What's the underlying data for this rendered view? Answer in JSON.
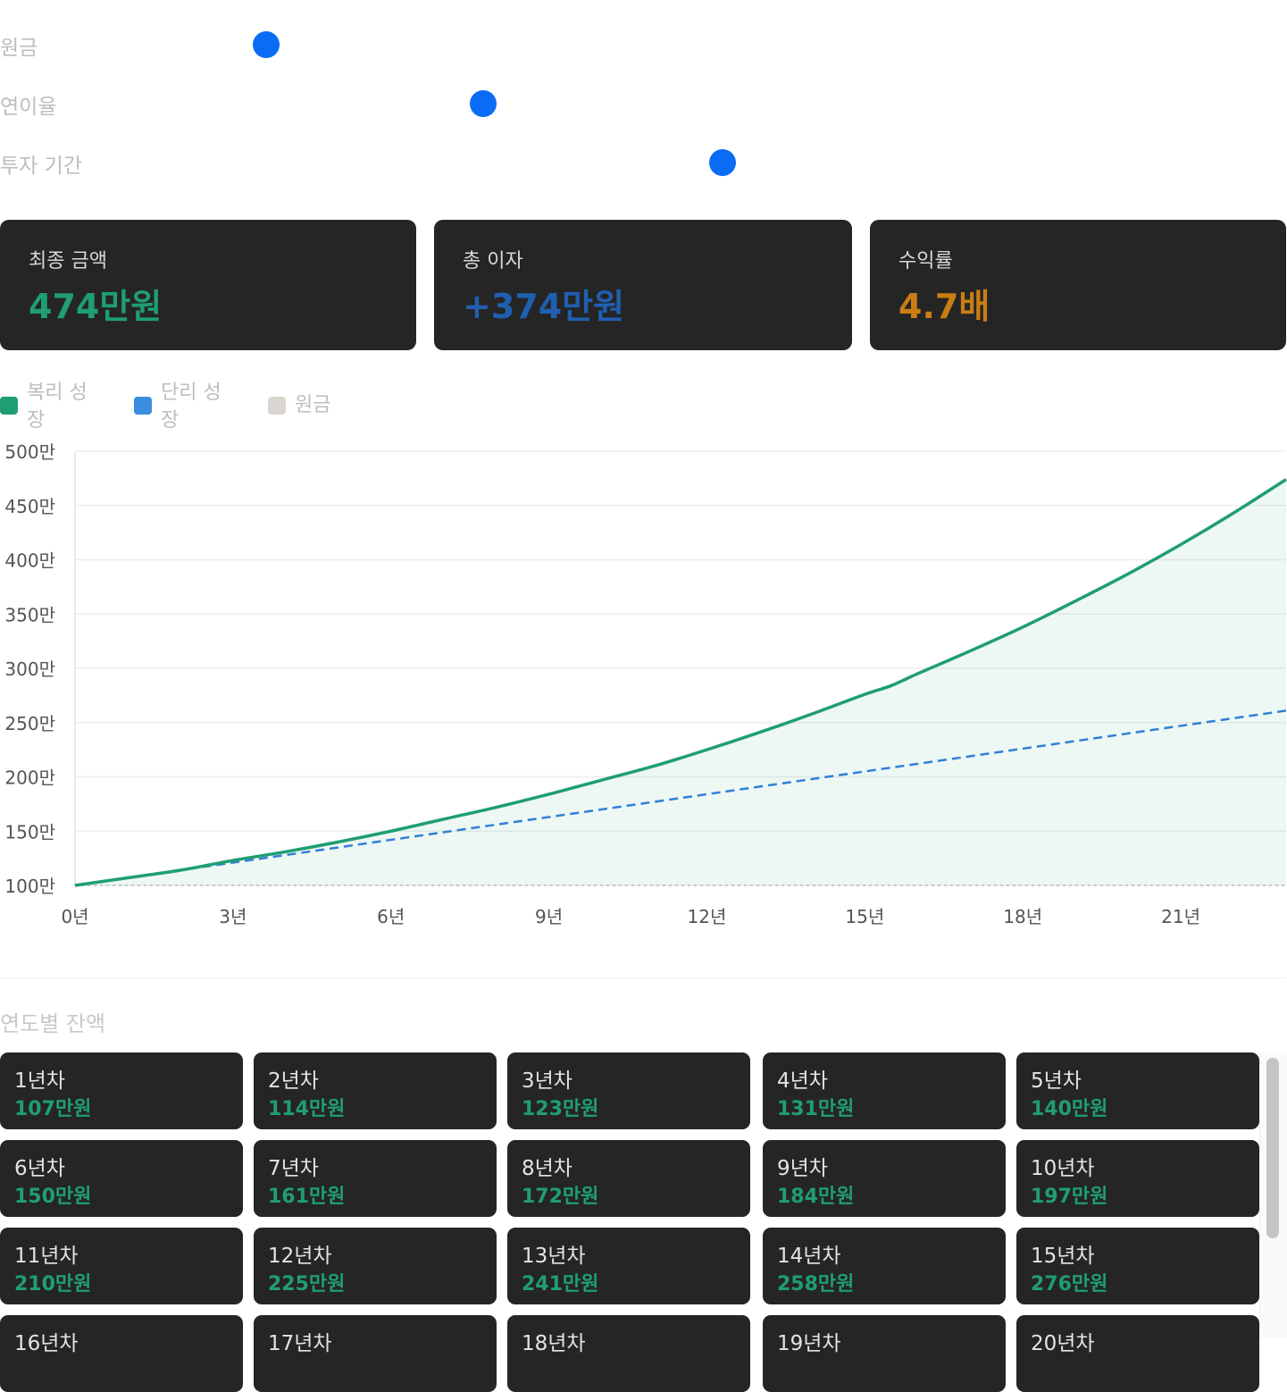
{
  "inputs": {
    "principal_label": "원금",
    "rate_label": "연이율",
    "period_label": "투자 기간"
  },
  "sliders": {
    "principal_fraction": 0.207,
    "rate_fraction": 0.376,
    "period_fraction": 0.562
  },
  "stats": {
    "final_label": "최종 금액",
    "final_value": "474만원",
    "interest_label": "총 이자",
    "interest_value": "+374만원",
    "ratio_label": "수익률",
    "ratio_value": "4.7배"
  },
  "legend": {
    "compound": "복리 성장",
    "simple": "단리 성장",
    "principal": "원금"
  },
  "colors": {
    "compound": "#1f9e71",
    "simple": "#2f80d6",
    "principal": "#d9d6d0",
    "accent_blue": "#0a6cf5",
    "ratio": "#c97d13",
    "interest": "#1f5fb0"
  },
  "chart_data": {
    "type": "line",
    "x_ticks": [
      0,
      3,
      6,
      9,
      12,
      15,
      18,
      21
    ],
    "x_tick_suffix": "년",
    "y_ticks": [
      100,
      150,
      200,
      250,
      300,
      350,
      400,
      450,
      500
    ],
    "y_tick_suffix": "만",
    "xlim": [
      0,
      23
    ],
    "ylim": [
      100,
      500
    ],
    "series": [
      {
        "name": "복리 성장",
        "style": "solid-area",
        "x": [
          0,
          1,
          2,
          3,
          4,
          5,
          6,
          7,
          8,
          9,
          10,
          11,
          12,
          13,
          14,
          15,
          15.5,
          16,
          17,
          18,
          19,
          20,
          21,
          22,
          23
        ],
        "values": [
          100,
          107,
          114,
          123,
          131,
          140,
          150,
          161,
          172,
          184,
          197,
          210,
          225,
          241,
          258,
          276,
          284,
          295,
          316,
          338,
          362,
          387,
          414,
          443,
          474
        ]
      },
      {
        "name": "단리 성장",
        "style": "dashed",
        "x": [
          0,
          23
        ],
        "values": [
          100,
          261
        ]
      },
      {
        "name": "원금",
        "style": "dotted",
        "x": [
          0,
          23
        ],
        "values": [
          100,
          100
        ]
      }
    ],
    "grid": true
  },
  "yearly": {
    "title": "연도별 잔액",
    "items": [
      {
        "label": "1년차",
        "value": "107만원"
      },
      {
        "label": "2년차",
        "value": "114만원"
      },
      {
        "label": "3년차",
        "value": "123만원"
      },
      {
        "label": "4년차",
        "value": "131만원"
      },
      {
        "label": "5년차",
        "value": "140만원"
      },
      {
        "label": "6년차",
        "value": "150만원"
      },
      {
        "label": "7년차",
        "value": "161만원"
      },
      {
        "label": "8년차",
        "value": "172만원"
      },
      {
        "label": "9년차",
        "value": "184만원"
      },
      {
        "label": "10년차",
        "value": "197만원"
      },
      {
        "label": "11년차",
        "value": "210만원"
      },
      {
        "label": "12년차",
        "value": "225만원"
      },
      {
        "label": "13년차",
        "value": "241만원"
      },
      {
        "label": "14년차",
        "value": "258만원"
      },
      {
        "label": "15년차",
        "value": "276만원"
      },
      {
        "label": "16년차",
        "value": ""
      },
      {
        "label": "17년차",
        "value": ""
      },
      {
        "label": "18년차",
        "value": ""
      },
      {
        "label": "19년차",
        "value": ""
      },
      {
        "label": "20년차",
        "value": ""
      }
    ]
  }
}
